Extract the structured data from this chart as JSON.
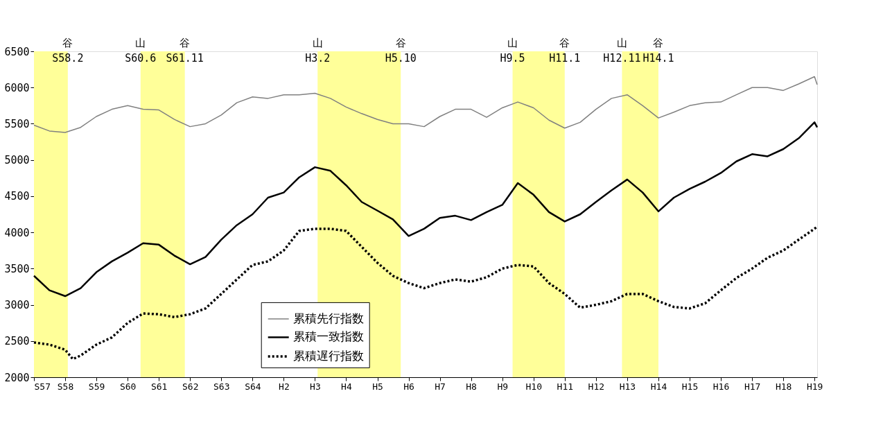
{
  "chart_data": {
    "type": "line",
    "x": [
      "1982-01",
      "1982-07",
      "1983-01",
      "1983-07",
      "1984-01",
      "1984-07",
      "1985-01",
      "1985-07",
      "1986-01",
      "1986-07",
      "1987-01",
      "1987-07",
      "1988-01",
      "1988-07",
      "1989-01",
      "1989-07",
      "1990-01",
      "1990-07",
      "1991-01",
      "1991-07",
      "1992-01",
      "1992-07",
      "1993-01",
      "1993-07",
      "1994-01",
      "1994-07",
      "1995-01",
      "1995-07",
      "1996-01",
      "1996-07",
      "1997-01",
      "1997-07",
      "1998-01",
      "1998-07",
      "1999-01",
      "1999-07",
      "2000-01",
      "2000-07",
      "2001-01",
      "2001-07",
      "2002-01",
      "2002-07",
      "2003-01",
      "2003-07",
      "2004-01",
      "2004-07",
      "2005-01",
      "2005-07",
      "2006-01",
      "2006-07",
      "2007-01",
      "2007-02"
    ],
    "series": [
      {
        "name": "累積先行指数",
        "color": "#808080",
        "line_style": "solid",
        "values": [
          5480,
          5400,
          5380,
          5450,
          5600,
          5700,
          5750,
          5700,
          5690,
          5560,
          5460,
          5500,
          5620,
          5790,
          5870,
          5850,
          5900,
          5900,
          5920,
          5850,
          5730,
          5640,
          5560,
          5500,
          5500,
          5460,
          5600,
          5700,
          5700,
          5590,
          5720,
          5800,
          5720,
          5550,
          5440,
          5520,
          5700,
          5850,
          5900,
          5750,
          5580,
          5660,
          5750,
          5790,
          5800,
          5900,
          6000,
          6000,
          5960,
          6050,
          6150,
          6040
        ]
      },
      {
        "name": "累積一致指数",
        "color": "#000000",
        "line_style": "solid",
        "values": [
          3400,
          3200,
          3120,
          3230,
          3450,
          3600,
          3720,
          3850,
          3830,
          3680,
          3560,
          3660,
          3900,
          4100,
          4250,
          4480,
          4550,
          4760,
          4900,
          4850,
          4650,
          4420,
          4300,
          4180,
          3950,
          4050,
          4200,
          4230,
          4170,
          4280,
          4380,
          4680,
          4520,
          4280,
          4150,
          4250,
          4420,
          4580,
          4730,
          4550,
          4290,
          4480,
          4600,
          4700,
          4820,
          4980,
          5080,
          5050,
          5150,
          5300,
          5520,
          5450
        ]
      },
      {
        "name": "累積遅行指数",
        "color": "#000000",
        "line_style": "dotted",
        "x": [
          "1982-01",
          "1982-07",
          "1983-01",
          "1983-04",
          "1983-07",
          "1984-01",
          "1984-07",
          "1985-01",
          "1985-07",
          "1986-01",
          "1986-07",
          "1987-01",
          "1987-07",
          "1988-01",
          "1988-07",
          "1989-01",
          "1989-07",
          "1990-01",
          "1990-07",
          "1991-01",
          "1991-07",
          "1992-01",
          "1992-07",
          "1993-01",
          "1993-07",
          "1994-01",
          "1994-07",
          "1995-01",
          "1995-07",
          "1996-01",
          "1996-07",
          "1997-01",
          "1997-07",
          "1998-01",
          "1998-07",
          "1999-01",
          "1999-07",
          "2000-01",
          "2000-07",
          "2001-01",
          "2001-07",
          "2002-01",
          "2002-07",
          "2003-01",
          "2003-07",
          "2004-01",
          "2004-07",
          "2005-01",
          "2005-07",
          "2006-01",
          "2006-07",
          "2007-01",
          "2007-02"
        ],
        "values": [
          2480,
          2450,
          2380,
          2250,
          2300,
          2450,
          2550,
          2750,
          2880,
          2870,
          2830,
          2870,
          2950,
          3150,
          3350,
          3550,
          3600,
          3750,
          4020,
          4050,
          4050,
          4020,
          3800,
          3580,
          3400,
          3300,
          3230,
          3300,
          3350,
          3320,
          3380,
          3500,
          3550,
          3530,
          3300,
          3150,
          2960,
          3000,
          3050,
          3150,
          3150,
          3050,
          2970,
          2950,
          3020,
          3200,
          3370,
          3500,
          3650,
          3750,
          3900,
          4050,
          4080
        ]
      }
    ],
    "xlim": [
      "1982-01",
      "2007-02"
    ],
    "xticks": [
      {
        "value": "1982-01",
        "label": "S57"
      },
      {
        "value": "1983-01",
        "label": "S58"
      },
      {
        "value": "1984-01",
        "label": "S59"
      },
      {
        "value": "1985-01",
        "label": "S60"
      },
      {
        "value": "1986-01",
        "label": "S61"
      },
      {
        "value": "1987-01",
        "label": "S62"
      },
      {
        "value": "1988-01",
        "label": "S63"
      },
      {
        "value": "1989-01",
        "label": "S64"
      },
      {
        "value": "1990-01",
        "label": "H2"
      },
      {
        "value": "1991-01",
        "label": "H3"
      },
      {
        "value": "1992-01",
        "label": "H4"
      },
      {
        "value": "1993-01",
        "label": "H5"
      },
      {
        "value": "1994-01",
        "label": "H6"
      },
      {
        "value": "1995-01",
        "label": "H7"
      },
      {
        "value": "1996-01",
        "label": "H8"
      },
      {
        "value": "1997-01",
        "label": "H9"
      },
      {
        "value": "1998-01",
        "label": "H10"
      },
      {
        "value": "1999-01",
        "label": "H11"
      },
      {
        "value": "2000-01",
        "label": "H12"
      },
      {
        "value": "2001-01",
        "label": "H13"
      },
      {
        "value": "2002-01",
        "label": "H14"
      },
      {
        "value": "2003-01",
        "label": "H15"
      },
      {
        "value": "2004-01",
        "label": "H16"
      },
      {
        "value": "2005-01",
        "label": "H17"
      },
      {
        "value": "2006-01",
        "label": "H18"
      },
      {
        "value": "2007-01",
        "label": "H19"
      }
    ],
    "ylim": [
      2000,
      6500
    ],
    "yticks": [
      2000,
      2500,
      3000,
      3500,
      4000,
      4500,
      5000,
      5500,
      6000,
      6500
    ],
    "grid": false,
    "legend": "bottom",
    "bands": [
      {
        "axis": "x",
        "from": "1982-01",
        "to": "1983-02",
        "color": "#ffff99"
      },
      {
        "axis": "x",
        "from": "1985-06",
        "to": "1986-11",
        "color": "#ffff99"
      },
      {
        "axis": "x",
        "from": "1991-02",
        "to": "1993-10",
        "color": "#ffff99"
      },
      {
        "axis": "x",
        "from": "1997-05",
        "to": "1999-01",
        "color": "#ffff99"
      },
      {
        "axis": "x",
        "from": "2000-11",
        "to": "2002-01",
        "color": "#ffff99"
      }
    ],
    "annotations": [
      {
        "text": "谷\nS58.2",
        "x": "1983-02"
      },
      {
        "text": "山\nS60.6",
        "x": "1985-06"
      },
      {
        "text": "谷\nS61.11",
        "x": "1986-11"
      },
      {
        "text": "山\nH3.2",
        "x": "1991-02"
      },
      {
        "text": "谷\nH5.10",
        "x": "1993-10"
      },
      {
        "text": "山\nH9.5",
        "x": "1997-05"
      },
      {
        "text": "谷\nH11.1",
        "x": "1999-01"
      },
      {
        "text": "山\nH12.11",
        "x": "2000-11"
      },
      {
        "text": "谷\nH14.1",
        "x": "2002-01"
      }
    ]
  }
}
